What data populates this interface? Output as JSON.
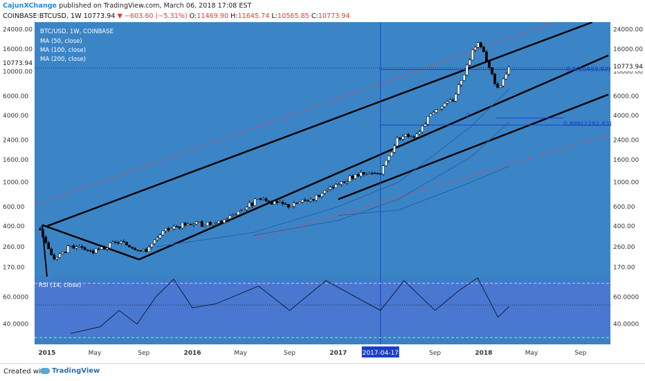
{
  "header": {
    "author": "CajunXChange",
    "published": " published on TradingView.com, March 06, 2018 17:08 EST",
    "symbol": "COINBASE:BTCUSD, 1W",
    "last": "10773.94",
    "change": "−603.60 (−5.31%)",
    "o_label": "O:",
    "o": "11469.90",
    "h_label": "H:",
    "h": "11645.74",
    "l_label": "L:",
    "l": "10565.85",
    "c_label": "C:",
    "c": "10773.94"
  },
  "legend": {
    "title": "BTC/USD, 1W, COINBASE",
    "ma50": "MA (50, close)",
    "ma100": "MA (100, close)",
    "ma200": "MA (200, close)",
    "rsi": "RSI (14, close)"
  },
  "price_labels": [
    "24000.00",
    "16000.00",
    "10000.00",
    "6000.00",
    "4000.00",
    "2400.00",
    "1600.00",
    "1000.00",
    "600.00",
    "400.00",
    "260.00",
    "170.00"
  ],
  "current_price_label": "10773.94",
  "rsi_labels": [
    "60.0000",
    "40.0000"
  ],
  "time_labels": [
    "2015",
    "May",
    "Sep",
    "2016",
    "May",
    "Sep",
    "2017",
    "2017-04-17",
    "Sep",
    "2018",
    "May",
    "Sep"
  ],
  "fib": {
    "fib1": "0.5(10433.92)",
    "fib2": "0.886(3282.83)",
    "marker": "2"
  },
  "colors": {
    "background": "#3b85c6",
    "bull": "#ffffff",
    "bear": "#000000",
    "channel": "#000000",
    "dashed": "#e04848",
    "ma": "#2b5ea8",
    "rsi_panel": "#4a78d0",
    "crosshair": "#1a3fc8"
  },
  "footer": {
    "created": "Created with",
    "brand": "TradingView"
  },
  "chart_data": {
    "type": "candlestick",
    "title": "BTC/USD, 1W, COINBASE",
    "y_scale": "log",
    "ylim": [
      140,
      28000
    ],
    "x_range": [
      "2014-12-01",
      "2018-11-15"
    ],
    "series": [
      {
        "name": "BTC/USD",
        "x": [
          "2014-12-15",
          "2015-01-15",
          "2015-03-01",
          "2015-05-01",
          "2015-07-01",
          "2015-09-01",
          "2015-11-01",
          "2016-01-01",
          "2016-03-01",
          "2016-06-15",
          "2016-09-01",
          "2016-11-01",
          "2017-01-01",
          "2017-02-15",
          "2017-04-17",
          "2017-06-01",
          "2017-07-15",
          "2017-09-01",
          "2017-10-15",
          "2017-12-17",
          "2018-02-06",
          "2018-03-06"
        ],
        "values": [
          380,
          200,
          260,
          235,
          290,
          235,
          380,
          430,
          415,
          700,
          610,
          720,
          950,
          1150,
          1200,
          2600,
          2700,
          4600,
          5500,
          19500,
          6900,
          10773.94
        ]
      },
      {
        "name": "MA (50, close)",
        "x": [
          "2015-10-01",
          "2016-06-01",
          "2017-01-01",
          "2017-06-01",
          "2017-12-01",
          "2018-03-06"
        ],
        "values": [
          260,
          350,
          600,
          1000,
          3200,
          7000
        ]
      },
      {
        "name": "MA (100, close)",
        "x": [
          "2016-06-01",
          "2017-01-01",
          "2017-06-01",
          "2017-12-01",
          "2018-03-06"
        ],
        "values": [
          330,
          450,
          700,
          1700,
          3500
        ]
      },
      {
        "name": "MA (200, close)",
        "x": [
          "2017-01-01",
          "2017-06-01",
          "2017-12-01",
          "2018-03-06"
        ],
        "values": [
          500,
          560,
          1000,
          1400
        ]
      }
    ],
    "rsi": {
      "name": "RSI (14, close)",
      "ylim": [
        25,
        75
      ],
      "levels": [
        30,
        70
      ],
      "x": [
        "2015-03-01",
        "2015-05-15",
        "2015-07-01",
        "2015-08-15",
        "2015-10-01",
        "2015-11-15",
        "2016-01-01",
        "2016-03-01",
        "2016-06-15",
        "2016-09-01",
        "2016-12-01",
        "2017-02-01",
        "2017-04-17",
        "2017-06-15",
        "2017-09-01",
        "2017-11-01",
        "2017-12-17",
        "2018-02-06",
        "2018-03-06"
      ],
      "values": [
        33,
        38,
        50,
        40,
        60,
        73,
        52,
        55,
        68,
        50,
        72,
        62,
        50,
        72,
        50,
        65,
        74,
        45,
        53
      ]
    },
    "annotations": [
      {
        "type": "fib",
        "label": "0.5(10433.92)",
        "value": 10433.92
      },
      {
        "type": "fib",
        "label": "0.886(3282.83)",
        "value": 3282.83
      },
      {
        "type": "crosshair",
        "label": "2017-04-17"
      }
    ]
  }
}
